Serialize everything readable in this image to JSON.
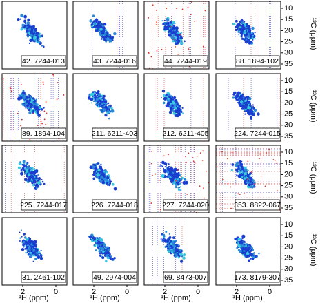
{
  "panels": [
    {
      "label": "42. 7244-013"
    },
    {
      "label": "43. 7244-016"
    },
    {
      "label": "44. 7244-019"
    },
    {
      "label": "88. 1894-102"
    },
    {
      "label": "89. 1894-104"
    },
    {
      "label": "211. 6211-403"
    },
    {
      "label": "212. 6211-405"
    },
    {
      "label": "224. 7244-015"
    },
    {
      "label": "225. 7244-017"
    },
    {
      "label": "226. 7244-018"
    },
    {
      "label": "227. 7244-020"
    },
    {
      "label": "353. 8822-067"
    },
    {
      "label": "31. 2461-102"
    },
    {
      "label": "49. 2974-004"
    },
    {
      "label": "69. 8473-007"
    },
    {
      "label": "173. 8179-307"
    }
  ],
  "y_axis": {
    "label": "¹³C (ppm)",
    "ticks": [
      "10",
      "15",
      "20",
      "25",
      "30",
      "35"
    ]
  },
  "x_axis": {
    "label": "¹H (ppm)",
    "ticks": [
      "2",
      "0"
    ]
  }
}
